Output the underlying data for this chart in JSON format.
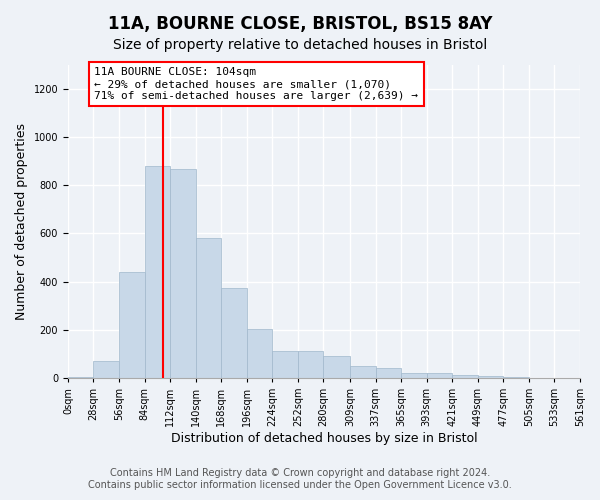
{
  "title": "11A, BOURNE CLOSE, BRISTOL, BS15 8AY",
  "subtitle": "Size of property relative to detached houses in Bristol",
  "xlabel": "Distribution of detached houses by size in Bristol",
  "ylabel": "Number of detached properties",
  "bar_color": "#c8d8e8",
  "bar_edge_color": "#a0b8cc",
  "vline_x": 104,
  "vline_color": "red",
  "annotation_text": "11A BOURNE CLOSE: 104sqm\n← 29% of detached houses are smaller (1,070)\n71% of semi-detached houses are larger (2,639) →",
  "bins": [
    0,
    28,
    56,
    84,
    112,
    140,
    168,
    196,
    224,
    252,
    280,
    309,
    337,
    365,
    393,
    421,
    449,
    477,
    505,
    533,
    561
  ],
  "counts": [
    5,
    70,
    440,
    880,
    870,
    580,
    375,
    205,
    110,
    110,
    90,
    50,
    40,
    22,
    20,
    14,
    10,
    4,
    1,
    0
  ],
  "ylim": [
    0,
    1300
  ],
  "yticks": [
    0,
    200,
    400,
    600,
    800,
    1000,
    1200
  ],
  "footer_line1": "Contains HM Land Registry data © Crown copyright and database right 2024.",
  "footer_line2": "Contains public sector information licensed under the Open Government Licence v3.0.",
  "bg_color": "#eef2f7",
  "plot_bg_color": "#eef2f7",
  "title_fontsize": 12,
  "subtitle_fontsize": 10,
  "axis_label_fontsize": 9,
  "tick_fontsize": 7,
  "annotation_fontsize": 8,
  "footer_fontsize": 7
}
